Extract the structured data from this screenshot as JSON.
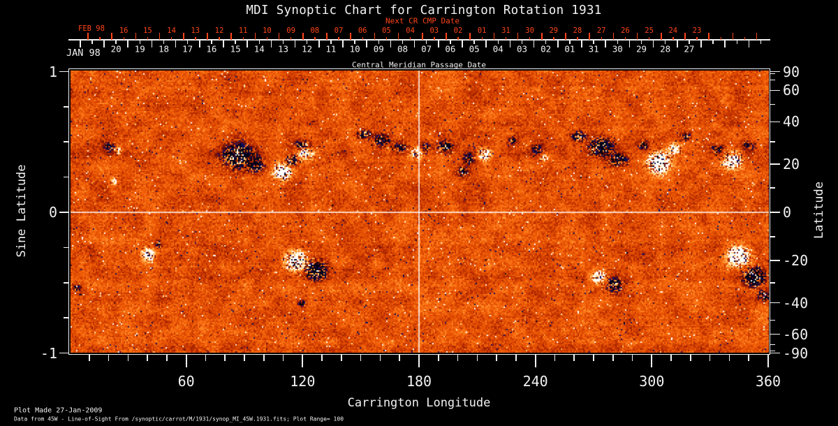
{
  "title": "MDI Synoptic Chart for Carrington Rotation 1931",
  "colors": {
    "background": "#000000",
    "axis": "#f2f2f2",
    "next_cr_red": "#ff4519"
  },
  "date_axis": {
    "next_cr_title": "Next CR CMP Date",
    "next_cr_month_label": "FEB 98",
    "next_cr_days": [
      "16",
      "15",
      "14",
      "13",
      "12",
      "11",
      "10",
      "09",
      "08",
      "07",
      "06",
      "05",
      "04",
      "03",
      "02",
      "01",
      "31",
      "30",
      "29",
      "28",
      "27",
      "26",
      "25",
      "24",
      "23"
    ],
    "month_label": "JAN 98",
    "days": [
      "20",
      "19",
      "18",
      "17",
      "16",
      "15",
      "14",
      "13",
      "12",
      "11",
      "10",
      "09",
      "08",
      "07",
      "06",
      "05",
      "04",
      "03",
      "02",
      "01",
      "31",
      "30",
      "29",
      "28",
      "27"
    ],
    "axis_title": "Central Meridian Passage Date"
  },
  "y_axis_left": {
    "label": "Sine Latitude",
    "ticks": [
      "1",
      "0",
      "-1"
    ]
  },
  "y_axis_right": {
    "label": "Latitude",
    "ticks": [
      "90",
      "60",
      "40",
      "20",
      "0",
      "-20",
      "-40",
      "-60",
      "-90"
    ]
  },
  "x_axis": {
    "label": "Carrington Longitude",
    "ticks": [
      "60",
      "120",
      "180",
      "240",
      "300",
      "360"
    ]
  },
  "footer": {
    "line1": "Plot Made 27-Jan-2009",
    "line2": "Data from 45W - Line-of-Sight From /synoptic/carrot/M/1931/synop_MI_45W.1931.fits; Plot Range=  100"
  },
  "chart_data": {
    "type": "heatmap",
    "title": "MDI Synoptic Chart for Carrington Rotation 1931",
    "instrument": "MDI",
    "carrington_rotation": 1931,
    "value_quantity": "line-of-sight magnetic field",
    "plot_range_gauss": 100,
    "x": {
      "label": "Carrington Longitude",
      "range_deg": [
        0,
        360
      ],
      "major_ticks": [
        60,
        120,
        180,
        240,
        300,
        360
      ],
      "minor_tick_step_deg": 10
    },
    "y": {
      "label": "Sine Latitude",
      "range": [
        -1,
        1
      ],
      "major_ticks": [
        1,
        0,
        -1
      ],
      "minor_tick_step": 0.25
    },
    "y_right": {
      "label": "Latitude",
      "major_ticks": [
        90,
        60,
        40,
        20,
        0,
        -20,
        -40,
        -60,
        -90
      ],
      "minor_ticks": [
        80,
        70,
        50,
        30,
        10,
        -10,
        -30,
        -50,
        -70,
        -80
      ]
    },
    "grid": {
      "vertical_line_longitude_deg": 180,
      "horizontal_line_sine_latitude": 0
    },
    "colormap_stops": [
      [
        0.0,
        "#020216"
      ],
      [
        0.06,
        "#08105c"
      ],
      [
        0.13,
        "#200c62"
      ],
      [
        0.2,
        "#500a14"
      ],
      [
        0.27,
        "#801402"
      ],
      [
        0.38,
        "#b22800"
      ],
      [
        0.5,
        "#e04a00"
      ],
      [
        0.62,
        "#f86a0e"
      ],
      [
        0.72,
        "#ff8c28"
      ],
      [
        0.8,
        "#ffb050"
      ],
      [
        0.88,
        "#ffd88c"
      ],
      [
        0.94,
        "#fff0c8"
      ],
      [
        1.0,
        "#ffffff"
      ]
    ],
    "active_regions": [
      {
        "lon": 20,
        "lat": 28,
        "polarity": -1,
        "r_lon_deg": 3.0,
        "r_lat_deg": 2.5,
        "strength": 0.5
      },
      {
        "lon": 24,
        "lat": 26,
        "polarity": 1,
        "r_lon_deg": 2.0,
        "r_lat_deg": 1.8,
        "strength": 0.55
      },
      {
        "lon": 22,
        "lat": 13,
        "polarity": 1,
        "r_lon_deg": 1.8,
        "r_lat_deg": 1.6,
        "strength": 0.5
      },
      {
        "lon": 86,
        "lat": 24,
        "polarity": -1,
        "r_lon_deg": 8.0,
        "r_lat_deg": 5.5,
        "strength": 0.8
      },
      {
        "lon": 95,
        "lat": 20,
        "polarity": -1,
        "r_lon_deg": 4.5,
        "r_lat_deg": 3.5,
        "strength": 0.6
      },
      {
        "lon": 109,
        "lat": 17,
        "polarity": 1,
        "r_lon_deg": 4.5,
        "r_lat_deg": 3.5,
        "strength": 0.95
      },
      {
        "lon": 114,
        "lat": 22,
        "polarity": -1,
        "r_lon_deg": 3.5,
        "r_lat_deg": 2.5,
        "strength": 0.5
      },
      {
        "lon": 121,
        "lat": 25,
        "polarity": 1,
        "r_lon_deg": 4.5,
        "r_lat_deg": 3.0,
        "strength": 0.55
      },
      {
        "lon": 119,
        "lat": 29,
        "polarity": -1,
        "r_lon_deg": 3.5,
        "r_lat_deg": 2.5,
        "strength": 0.5
      },
      {
        "lon": 151,
        "lat": 34,
        "polarity": -1,
        "r_lon_deg": 4.0,
        "r_lat_deg": 2.5,
        "strength": 0.55
      },
      {
        "lon": 160,
        "lat": 31,
        "polarity": -1,
        "r_lon_deg": 4.5,
        "r_lat_deg": 3.0,
        "strength": 0.6
      },
      {
        "lon": 170,
        "lat": 28,
        "polarity": -1,
        "r_lon_deg": 3.5,
        "r_lat_deg": 2.5,
        "strength": 0.55
      },
      {
        "lon": 178,
        "lat": 25,
        "polarity": 1,
        "r_lon_deg": 3.0,
        "r_lat_deg": 2.5,
        "strength": 0.7
      },
      {
        "lon": 183,
        "lat": 28,
        "polarity": -1,
        "r_lon_deg": 2.5,
        "r_lat_deg": 2.0,
        "strength": 0.5
      },
      {
        "lon": 193,
        "lat": 28,
        "polarity": -1,
        "r_lon_deg": 4.0,
        "r_lat_deg": 2.8,
        "strength": 0.6
      },
      {
        "lon": 202,
        "lat": 17,
        "polarity": -1,
        "r_lon_deg": 3.2,
        "r_lat_deg": 2.6,
        "strength": 0.5
      },
      {
        "lon": 205,
        "lat": 23,
        "polarity": -1,
        "r_lon_deg": 3.2,
        "r_lat_deg": 2.6,
        "strength": 0.55
      },
      {
        "lon": 213,
        "lat": 25,
        "polarity": 1,
        "r_lon_deg": 3.5,
        "r_lat_deg": 3.0,
        "strength": 0.65
      },
      {
        "lon": 228,
        "lat": 31,
        "polarity": -1,
        "r_lon_deg": 2.8,
        "r_lat_deg": 2.0,
        "strength": 0.45
      },
      {
        "lon": 240,
        "lat": 27,
        "polarity": -1,
        "r_lon_deg": 3.0,
        "r_lat_deg": 2.4,
        "strength": 0.5
      },
      {
        "lon": 244,
        "lat": 23,
        "polarity": 1,
        "r_lon_deg": 2.2,
        "r_lat_deg": 1.8,
        "strength": 0.5
      },
      {
        "lon": 262,
        "lat": 33,
        "polarity": -1,
        "r_lon_deg": 4.0,
        "r_lat_deg": 2.6,
        "strength": 0.6
      },
      {
        "lon": 273,
        "lat": 28,
        "polarity": -1,
        "r_lon_deg": 6.5,
        "r_lat_deg": 4.0,
        "strength": 0.75
      },
      {
        "lon": 282,
        "lat": 22,
        "polarity": -1,
        "r_lon_deg": 4.5,
        "r_lat_deg": 3.0,
        "strength": 0.65
      },
      {
        "lon": 295,
        "lat": 29,
        "polarity": -1,
        "r_lon_deg": 2.8,
        "r_lat_deg": 2.2,
        "strength": 0.5
      },
      {
        "lon": 303,
        "lat": 21,
        "polarity": 1,
        "r_lon_deg": 5.5,
        "r_lat_deg": 4.5,
        "strength": 1.0
      },
      {
        "lon": 311,
        "lat": 27,
        "polarity": 1,
        "r_lon_deg": 3.5,
        "r_lat_deg": 2.8,
        "strength": 0.6
      },
      {
        "lon": 317,
        "lat": 33,
        "polarity": -1,
        "r_lon_deg": 2.6,
        "r_lat_deg": 2.0,
        "strength": 0.45
      },
      {
        "lon": 333,
        "lat": 27,
        "polarity": -1,
        "r_lon_deg": 2.8,
        "r_lat_deg": 2.2,
        "strength": 0.5
      },
      {
        "lon": 341,
        "lat": 22,
        "polarity": 1,
        "r_lon_deg": 4.5,
        "r_lat_deg": 3.8,
        "strength": 0.85
      },
      {
        "lon": 349,
        "lat": 29,
        "polarity": -1,
        "r_lon_deg": 3.0,
        "r_lat_deg": 2.2,
        "strength": 0.5
      },
      {
        "lon": 40,
        "lat": -17,
        "polarity": 1,
        "r_lon_deg": 3.5,
        "r_lat_deg": 3.0,
        "strength": 0.7
      },
      {
        "lon": 45,
        "lat": -13,
        "polarity": -1,
        "r_lon_deg": 2.2,
        "r_lat_deg": 1.8,
        "strength": 0.45
      },
      {
        "lon": 116,
        "lat": -20,
        "polarity": 1,
        "r_lon_deg": 5.5,
        "r_lat_deg": 4.2,
        "strength": 0.95
      },
      {
        "lon": 126,
        "lat": -24,
        "polarity": -1,
        "r_lon_deg": 5.5,
        "r_lat_deg": 4.2,
        "strength": 0.8
      },
      {
        "lon": 119,
        "lat": -40,
        "polarity": -1,
        "r_lon_deg": 2.0,
        "r_lat_deg": 1.7,
        "strength": 0.6
      },
      {
        "lon": 272,
        "lat": -27,
        "polarity": 1,
        "r_lon_deg": 3.8,
        "r_lat_deg": 3.0,
        "strength": 0.75
      },
      {
        "lon": 280,
        "lat": -31,
        "polarity": -1,
        "r_lon_deg": 4.2,
        "r_lat_deg": 3.4,
        "strength": 0.65
      },
      {
        "lon": 344,
        "lat": -18,
        "polarity": 1,
        "r_lon_deg": 5.5,
        "r_lat_deg": 4.2,
        "strength": 1.0
      },
      {
        "lon": 352,
        "lat": -27,
        "polarity": -1,
        "r_lon_deg": 5.5,
        "r_lat_deg": 4.5,
        "strength": 0.85
      },
      {
        "lon": 357,
        "lat": -36,
        "polarity": -1,
        "r_lon_deg": 3.5,
        "r_lat_deg": 2.8,
        "strength": 0.6
      },
      {
        "lon": 3,
        "lat": -32,
        "polarity": -1,
        "r_lon_deg": 2.5,
        "r_lat_deg": 2.0,
        "strength": 0.45
      }
    ]
  }
}
